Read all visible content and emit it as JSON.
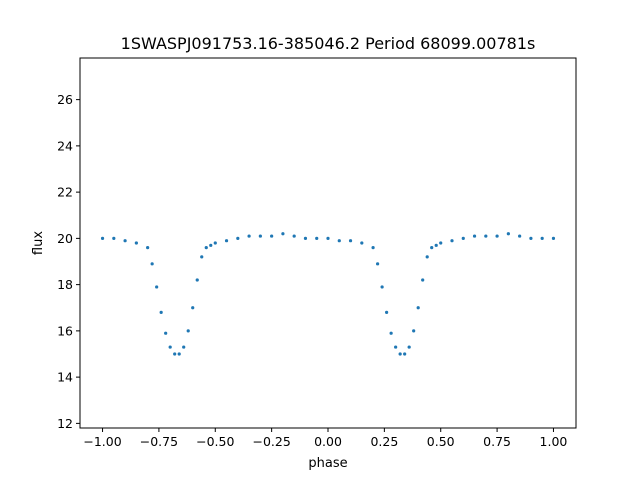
{
  "chart_data": {
    "type": "scatter",
    "title": "1SWASPJ091753.16-385046.2 Period 68099.00781s",
    "xlabel": "phase",
    "ylabel": "flux",
    "xlim": [
      -1.1,
      1.1
    ],
    "ylim": [
      11.8,
      27.8
    ],
    "x_ticks": [
      -1.0,
      -0.75,
      -0.5,
      -0.25,
      0.0,
      0.25,
      0.5,
      0.75,
      1.0
    ],
    "x_tick_labels": [
      "−1.00",
      "−0.75",
      "−0.50",
      "−0.25",
      "0.00",
      "0.25",
      "0.50",
      "0.75",
      "1.00"
    ],
    "y_ticks": [
      12,
      14,
      16,
      18,
      20,
      22,
      24,
      26
    ],
    "y_tick_labels": [
      "12",
      "14",
      "16",
      "18",
      "20",
      "22",
      "24",
      "26"
    ],
    "grid": false,
    "marker_color": "#1f77b4",
    "series": [
      {
        "x": [
          -1.0,
          -0.95,
          -0.9,
          -0.85,
          -0.8,
          -0.78,
          -0.76,
          -0.74,
          -0.72,
          -0.7,
          -0.68,
          -0.66,
          -0.64,
          -0.62,
          -0.6,
          -0.58,
          -0.56,
          -0.54,
          -0.52,
          -0.5,
          -0.45,
          -0.4,
          -0.35,
          -0.3,
          -0.25,
          -0.2,
          -0.15,
          -0.1,
          -0.05,
          0.0,
          0.05,
          0.1,
          0.15,
          0.2,
          0.22,
          0.24,
          0.26,
          0.28,
          0.3,
          0.32,
          0.34,
          0.36,
          0.38,
          0.4,
          0.42,
          0.44,
          0.46,
          0.48,
          0.5,
          0.55,
          0.6,
          0.65,
          0.7,
          0.75,
          0.8,
          0.85,
          0.9,
          0.95,
          1.0
        ],
        "y": [
          20.0,
          20.0,
          19.9,
          19.8,
          19.6,
          18.9,
          17.9,
          16.8,
          15.9,
          15.3,
          15.0,
          15.0,
          15.3,
          16.0,
          17.0,
          18.2,
          19.2,
          19.6,
          19.7,
          19.8,
          19.9,
          20.0,
          20.1,
          20.1,
          20.1,
          20.2,
          20.1,
          20.0,
          20.0,
          20.0,
          19.9,
          19.9,
          19.8,
          19.6,
          18.9,
          17.9,
          16.8,
          15.9,
          15.3,
          15.0,
          15.0,
          15.3,
          16.0,
          17.0,
          18.2,
          19.2,
          19.6,
          19.7,
          19.8,
          19.9,
          20.0,
          20.1,
          20.1,
          20.1,
          20.2,
          20.1,
          20.0,
          20.0,
          20.0
        ]
      }
    ]
  }
}
